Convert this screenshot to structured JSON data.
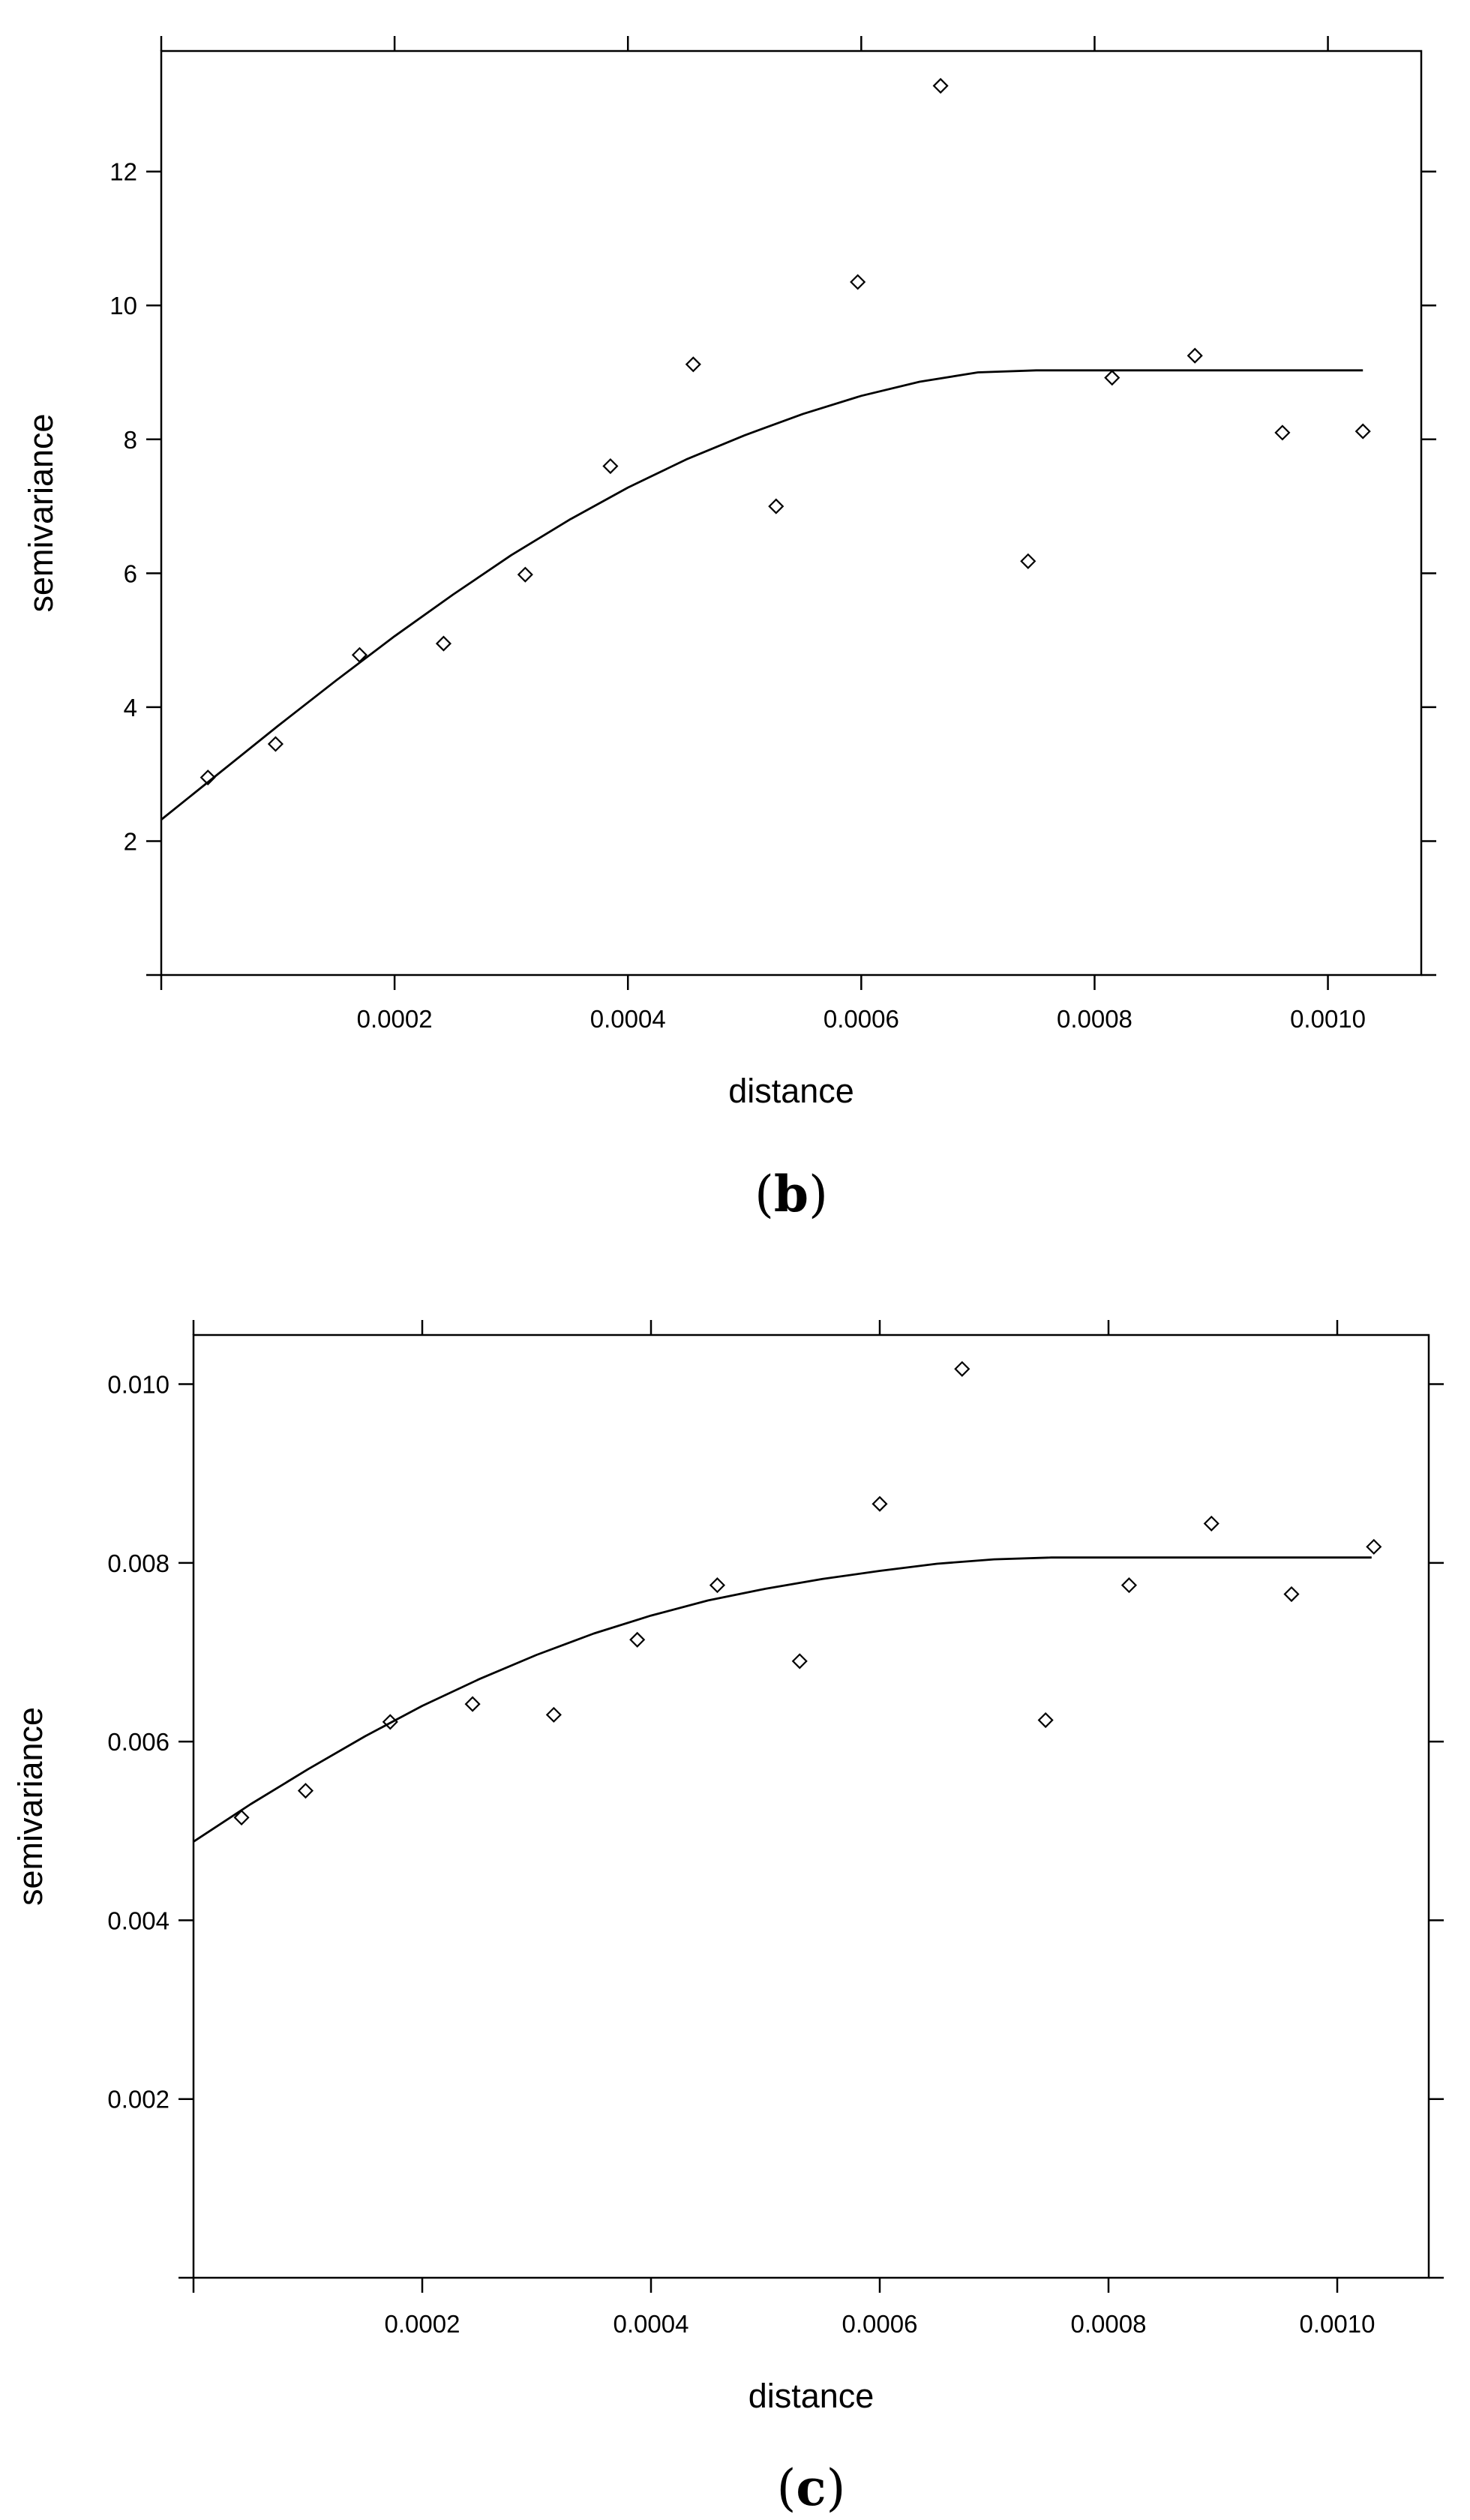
{
  "chart_data": [
    {
      "type": "scatter",
      "panel_label": "b",
      "xlabel": "distance",
      "ylabel": "semivariance",
      "xlim": [
        0.0,
        0.00108
      ],
      "ylim": [
        0.0,
        13.8
      ],
      "x_ticks": [
        0.0002,
        0.0004,
        0.0006,
        0.0008,
        0.001
      ],
      "x_tick_labels": [
        "0.0002",
        "0.0004",
        "0.0006",
        "0.0008",
        "0.0010"
      ],
      "y_ticks": [
        2,
        4,
        6,
        8,
        10,
        12
      ],
      "y_tick_labels": [
        "2",
        "4",
        "6",
        "8",
        "10",
        "12"
      ],
      "grid": false,
      "series": [
        {
          "kind": "points",
          "marker": "diamond",
          "x": [
            4e-05,
            9.8e-05,
            0.00017,
            0.000242,
            0.000312,
            0.000385,
            0.000456,
            0.000527,
            0.000597,
            0.000668,
            0.000743,
            0.000815,
            0.000886,
            0.000961,
            0.00103
          ],
          "y": [
            2.95,
            3.45,
            4.78,
            4.95,
            5.98,
            7.6,
            9.12,
            7.0,
            10.35,
            13.28,
            6.18,
            8.92,
            9.25,
            8.1,
            8.12
          ]
        },
        {
          "kind": "line",
          "x": [
            0.0,
            5e-05,
            0.0001,
            0.00015,
            0.0002,
            0.00025,
            0.0003,
            0.00035,
            0.0004,
            0.00045,
            0.0005,
            0.00055,
            0.0006,
            0.00065,
            0.0007,
            0.00075,
            0.0008,
            0.00085,
            0.0009,
            0.00095,
            0.001,
            0.00103
          ],
          "y": [
            2.32,
            3.02,
            3.72,
            4.4,
            5.06,
            5.68,
            6.27,
            6.8,
            7.28,
            7.7,
            8.06,
            8.38,
            8.65,
            8.86,
            9.0,
            9.03,
            9.03,
            9.03,
            9.03,
            9.03,
            9.03,
            9.03
          ]
        }
      ]
    },
    {
      "type": "scatter",
      "panel_label": "c",
      "xlabel": "distance",
      "ylabel": "semivariance",
      "xlim": [
        0.0,
        0.00108
      ],
      "ylim": [
        0.0,
        0.01055
      ],
      "x_ticks": [
        0.0002,
        0.0004,
        0.0006,
        0.0008,
        0.001
      ],
      "x_tick_labels": [
        "0.0002",
        "0.0004",
        "0.0006",
        "0.0008",
        "0.0010"
      ],
      "y_ticks": [
        0.002,
        0.004,
        0.006,
        0.008,
        0.01
      ],
      "y_tick_labels": [
        "0.002",
        "0.004",
        "0.006",
        "0.008",
        "0.010"
      ],
      "grid": false,
      "series": [
        {
          "kind": "points",
          "marker": "diamond",
          "x": [
            4.2e-05,
            9.8e-05,
            0.000172,
            0.000244,
            0.000315,
            0.000388,
            0.000458,
            0.00053,
            0.0006,
            0.000672,
            0.000745,
            0.000818,
            0.00089,
            0.00096,
            0.001032
          ],
          "y": [
            0.00515,
            0.00545,
            0.00622,
            0.00642,
            0.0063,
            0.00714,
            0.00775,
            0.0069,
            0.00866,
            0.01017,
            0.00624,
            0.00775,
            0.00844,
            0.00765,
            0.00818
          ]
        },
        {
          "kind": "line",
          "x": [
            0.0,
            5e-05,
            0.0001,
            0.00015,
            0.0002,
            0.00025,
            0.0003,
            0.00035,
            0.0004,
            0.00045,
            0.0005,
            0.00055,
            0.0006,
            0.00065,
            0.0007,
            0.00075,
            0.0008,
            0.00085,
            0.0009,
            0.00095,
            0.001,
            0.00103
          ],
          "y": [
            0.00488,
            0.0053,
            0.00569,
            0.00606,
            0.0064,
            0.0067,
            0.00697,
            0.00721,
            0.00741,
            0.00758,
            0.00771,
            0.00782,
            0.00791,
            0.00799,
            0.00804,
            0.00806,
            0.00806,
            0.00806,
            0.00806,
            0.00806,
            0.00806,
            0.00806
          ]
        }
      ]
    }
  ]
}
